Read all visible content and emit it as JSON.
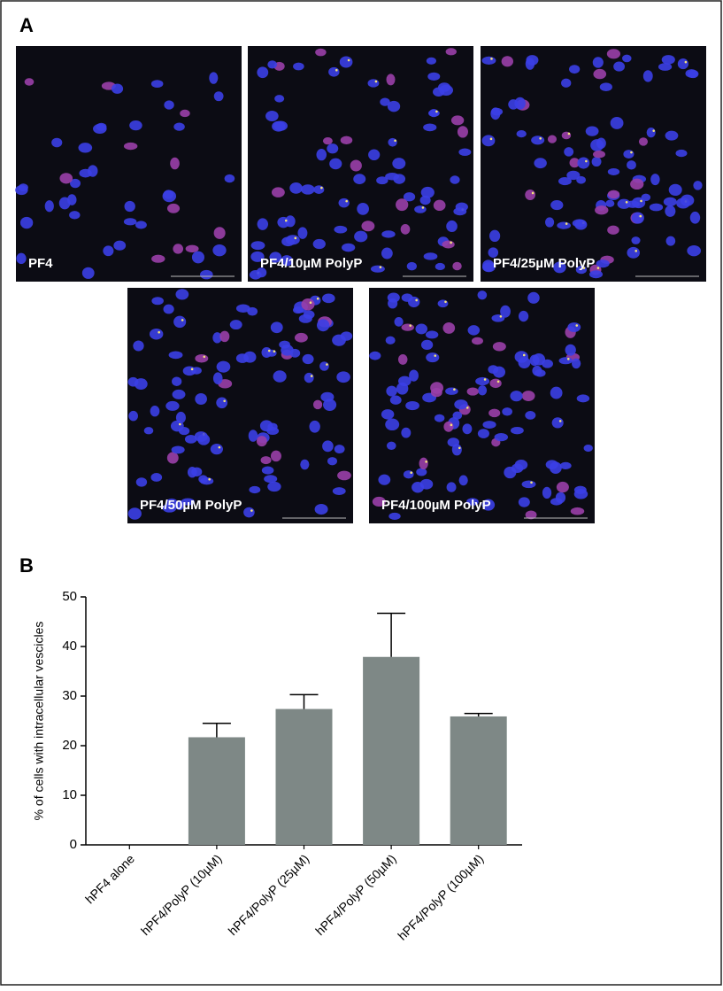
{
  "panel_a": {
    "label": "A",
    "images": [
      {
        "label": "PF4"
      },
      {
        "label": "PF4/10µM PolyP"
      },
      {
        "label": "PF4/25µM PolyP"
      },
      {
        "label": "PF4/50µM PolyP"
      },
      {
        "label": "PF4/100µM PolyP"
      }
    ]
  },
  "panel_b": {
    "label": "B"
  },
  "chart_data": {
    "type": "bar",
    "ylabel": "% of cells with intracellular vescicles",
    "categories": [
      "hPF4 alone",
      "hPF4/PolyP (10µM)",
      "hPF4/PolyP (25µM)",
      "hPF4/PolyP (50µM)",
      "hPF4/PolyP (100µM)"
    ],
    "values": [
      0,
      21.7,
      27.4,
      37.9,
      25.9
    ],
    "errors": [
      0,
      2.8,
      2.9,
      8.8,
      0.6
    ],
    "color": "#7e8886",
    "ylim": [
      0,
      50
    ],
    "yticks": [
      0,
      10,
      20,
      30,
      40,
      50
    ]
  }
}
